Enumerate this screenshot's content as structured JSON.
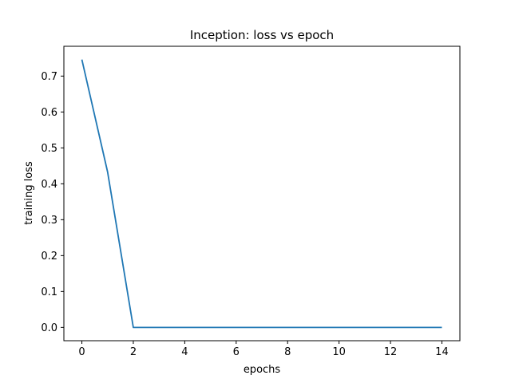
{
  "chart_data": {
    "type": "line",
    "title": "Inception: loss vs epoch",
    "xlabel": "epochs",
    "ylabel": "training loss",
    "xlim": [
      -0.7,
      14.7
    ],
    "ylim": [
      -0.037,
      0.783
    ],
    "x_ticks": [
      0,
      2,
      4,
      6,
      8,
      10,
      12,
      14
    ],
    "x_tick_labels": [
      "0",
      "2",
      "4",
      "6",
      "8",
      "10",
      "12",
      "14"
    ],
    "y_ticks": [
      0.0,
      0.1,
      0.2,
      0.3,
      0.4,
      0.5,
      0.6,
      0.7
    ],
    "y_tick_labels": [
      "0.0",
      "0.1",
      "0.2",
      "0.3",
      "0.4",
      "0.5",
      "0.6",
      "0.7"
    ],
    "grid": false,
    "series": [
      {
        "color": "#1f77b4",
        "x": [
          0,
          1,
          2,
          3,
          4,
          5,
          6,
          7,
          8,
          9,
          10,
          11,
          12,
          13,
          14
        ],
        "y": [
          0.746,
          0.433,
          0.0,
          0.0,
          0.0,
          0.0,
          0.0,
          0.0,
          0.0,
          0.0,
          0.0,
          0.0,
          0.0,
          0.0,
          0.0
        ]
      }
    ]
  }
}
